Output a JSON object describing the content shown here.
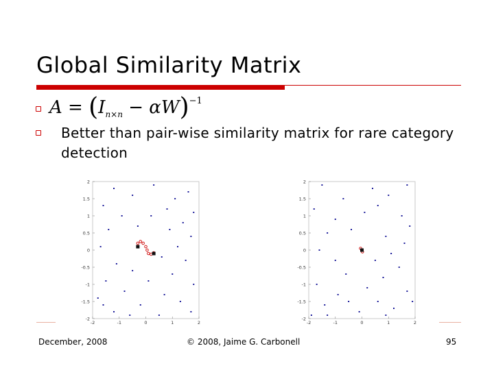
{
  "slide": {
    "title": "Global Similarity Matrix",
    "formula": {
      "lhs": "A",
      "eq": "=",
      "identity": "I",
      "identity_sub": "n×n",
      "minus": "−",
      "alpha": "α",
      "w": "W",
      "power": "−1"
    },
    "bullet_text": "Better than pair-wise similarity matrix for rare category detection",
    "footer": {
      "date": "December, 2008",
      "copyright": "© 2008, Jaime G. Carbonell",
      "page": "95"
    },
    "colors": {
      "accent": "#cc0000",
      "points": "#1a1a99",
      "highlight": "#cc0000"
    }
  },
  "chart_data": [
    {
      "type": "scatter",
      "title": "",
      "xlabel": "",
      "ylabel": "",
      "xlim": [
        -2,
        2
      ],
      "ylim": [
        -2,
        2
      ],
      "x_ticks": [
        "-2",
        "-1",
        "0",
        "1",
        "2"
      ],
      "y_ticks": [
        "2",
        "1.5",
        "1",
        "0.5",
        "0",
        "-0.5",
        "-1",
        "-1.5",
        "-2"
      ],
      "series": [
        {
          "points": [
            [
              -1.2,
              1.8
            ],
            [
              0.3,
              1.9
            ],
            [
              1.6,
              1.7
            ],
            [
              -0.5,
              1.6
            ],
            [
              1.1,
              1.5
            ],
            [
              -1.6,
              1.3
            ],
            [
              0.8,
              1.2
            ],
            [
              1.8,
              1.1
            ],
            [
              -0.9,
              1.0
            ],
            [
              0.2,
              1.0
            ],
            [
              1.4,
              0.8
            ],
            [
              -1.4,
              0.6
            ],
            [
              -0.3,
              0.7
            ],
            [
              0.9,
              0.6
            ],
            [
              1.7,
              0.4
            ],
            [
              -1.7,
              0.1
            ],
            [
              1.2,
              0.1
            ],
            [
              0.6,
              -0.2
            ],
            [
              -1.1,
              -0.4
            ],
            [
              1.5,
              -0.3
            ],
            [
              -0.5,
              -0.6
            ],
            [
              1.0,
              -0.7
            ],
            [
              -1.5,
              -0.9
            ],
            [
              0.1,
              -0.9
            ],
            [
              1.8,
              -1.0
            ],
            [
              -0.8,
              -1.2
            ],
            [
              0.7,
              -1.3
            ],
            [
              -1.8,
              -1.4
            ],
            [
              1.3,
              -1.5
            ],
            [
              -0.2,
              -1.6
            ],
            [
              -1.2,
              -1.8
            ],
            [
              0.5,
              -1.9
            ],
            [
              1.7,
              -1.8
            ],
            [
              -1.6,
              -1.6
            ],
            [
              -0.6,
              -1.9
            ]
          ]
        },
        {
          "points": [
            [
              -0.3,
              0.2
            ],
            [
              -0.2,
              0.25
            ],
            [
              -0.1,
              0.2
            ],
            [
              0.0,
              0.1
            ],
            [
              0.05,
              0.0
            ],
            [
              0.1,
              -0.1
            ],
            [
              0.2,
              -0.12
            ],
            [
              0.3,
              -0.08
            ]
          ]
        },
        {
          "points": [
            [
              -0.3,
              0.1
            ],
            [
              0.3,
              -0.1
            ]
          ]
        }
      ]
    },
    {
      "type": "scatter",
      "title": "",
      "xlabel": "",
      "ylabel": "",
      "xlim": [
        -2,
        2
      ],
      "ylim": [
        -2,
        2
      ],
      "x_ticks": [
        "-2",
        "-1",
        "0",
        "1",
        "2"
      ],
      "y_ticks": [
        "2",
        "1.5",
        "1",
        "0.5",
        "0",
        "-0.5",
        "-1",
        "-1.5",
        "-2"
      ],
      "series": [
        {
          "points": [
            [
              -1.5,
              1.9
            ],
            [
              0.4,
              1.8
            ],
            [
              1.7,
              1.9
            ],
            [
              -0.7,
              1.5
            ],
            [
              1.0,
              1.6
            ],
            [
              -1.8,
              1.2
            ],
            [
              0.6,
              1.3
            ],
            [
              1.5,
              1.0
            ],
            [
              -1.0,
              0.9
            ],
            [
              0.1,
              1.1
            ],
            [
              1.8,
              0.7
            ],
            [
              -1.3,
              0.5
            ],
            [
              -0.4,
              0.6
            ],
            [
              0.9,
              0.4
            ],
            [
              1.6,
              0.2
            ],
            [
              -1.6,
              0.0
            ],
            [
              1.1,
              -0.1
            ],
            [
              0.5,
              -0.3
            ],
            [
              -1.0,
              -0.3
            ],
            [
              1.4,
              -0.5
            ],
            [
              -0.6,
              -0.7
            ],
            [
              0.8,
              -0.8
            ],
            [
              -1.7,
              -1.0
            ],
            [
              0.2,
              -1.1
            ],
            [
              1.7,
              -1.2
            ],
            [
              -0.9,
              -1.3
            ],
            [
              0.6,
              -1.5
            ],
            [
              -1.4,
              -1.6
            ],
            [
              1.2,
              -1.7
            ],
            [
              -0.1,
              -1.8
            ],
            [
              -1.3,
              -1.9
            ],
            [
              0.9,
              -1.9
            ],
            [
              1.9,
              -1.5
            ],
            [
              -0.5,
              -1.5
            ],
            [
              -1.9,
              -1.9
            ]
          ]
        },
        {
          "points": [
            [
              -0.05,
              0.05
            ],
            [
              0.0,
              0.0
            ],
            [
              0.02,
              -0.05
            ]
          ]
        },
        {
          "points": [
            [
              0.0,
              0.0
            ]
          ]
        }
      ]
    }
  ]
}
